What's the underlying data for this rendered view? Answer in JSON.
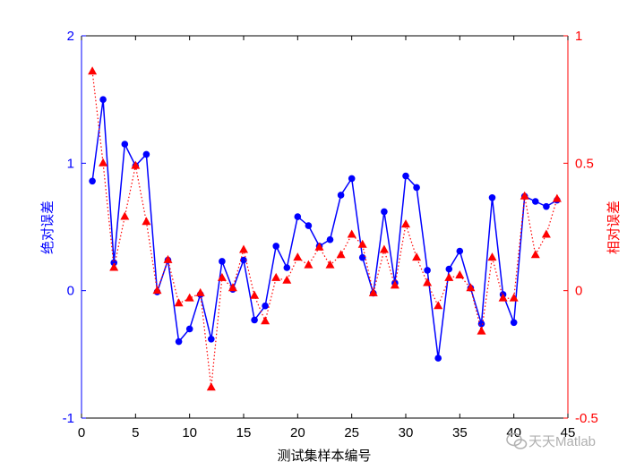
{
  "chart_data": {
    "type": "line",
    "xlabel": "测试集样本编号",
    "ylabel_left": "绝对误差",
    "ylabel_right": "相对误差",
    "xlim": [
      0,
      45
    ],
    "ylim_left": [
      -1,
      2
    ],
    "ylim_right": [
      -0.5,
      1
    ],
    "xticks": [
      "0",
      "5",
      "10",
      "15",
      "20",
      "25",
      "30",
      "35",
      "40",
      "45"
    ],
    "yticks_left": [
      "-1",
      "0",
      "1",
      "2"
    ],
    "yticks_right": [
      "-0.5",
      "0",
      "0.5",
      "1"
    ],
    "grid": false,
    "colors": {
      "left_axis": "#0000ff",
      "right_axis": "#ff0000",
      "frame": "#000000"
    },
    "series": [
      {
        "axis": "left",
        "style": "solid line, circle markers",
        "color": "#0000ff",
        "x": [
          1,
          2,
          3,
          4,
          5,
          6,
          7,
          8,
          9,
          10,
          11,
          12,
          13,
          14,
          15,
          16,
          17,
          18,
          19,
          20,
          21,
          22,
          23,
          24,
          25,
          26,
          27,
          28,
          29,
          30,
          31,
          32,
          33,
          34,
          35,
          36,
          37,
          38,
          39,
          40,
          41,
          42,
          43,
          44
        ],
        "values": [
          0.86,
          1.5,
          0.22,
          1.15,
          0.98,
          1.07,
          -0.01,
          0.24,
          -0.4,
          -0.3,
          -0.03,
          -0.38,
          0.23,
          0.01,
          0.24,
          -0.23,
          -0.12,
          0.35,
          0.18,
          0.58,
          0.51,
          0.35,
          0.4,
          0.75,
          0.88,
          0.26,
          -0.02,
          0.62,
          0.06,
          0.9,
          0.81,
          0.16,
          -0.53,
          0.17,
          0.31,
          0.02,
          -0.26,
          0.73,
          -0.03,
          -0.25,
          0.74,
          0.7,
          0.66,
          0.71
        ]
      },
      {
        "axis": "right",
        "style": "dotted line, triangle markers",
        "color": "#ff0000",
        "x": [
          1,
          2,
          3,
          4,
          5,
          6,
          7,
          8,
          9,
          10,
          11,
          12,
          13,
          14,
          15,
          16,
          17,
          18,
          19,
          20,
          21,
          22,
          23,
          24,
          25,
          26,
          27,
          28,
          29,
          30,
          31,
          32,
          33,
          34,
          35,
          36,
          37,
          38,
          39,
          40,
          41,
          42,
          43,
          44
        ],
        "values": [
          0.86,
          0.5,
          0.09,
          0.29,
          0.49,
          0.27,
          0.0,
          0.12,
          -0.05,
          -0.03,
          -0.01,
          -0.38,
          0.05,
          0.01,
          0.16,
          -0.02,
          -0.12,
          0.05,
          0.04,
          0.13,
          0.1,
          0.17,
          0.1,
          0.14,
          0.22,
          0.18,
          -0.01,
          0.16,
          0.02,
          0.26,
          0.13,
          0.03,
          -0.06,
          0.05,
          0.06,
          0.01,
          -0.16,
          0.13,
          -0.03,
          -0.03,
          0.37,
          0.14,
          0.22,
          0.36
        ]
      }
    ]
  },
  "watermark": {
    "text": "天天Matlab",
    "icon": "wechat-icon"
  }
}
